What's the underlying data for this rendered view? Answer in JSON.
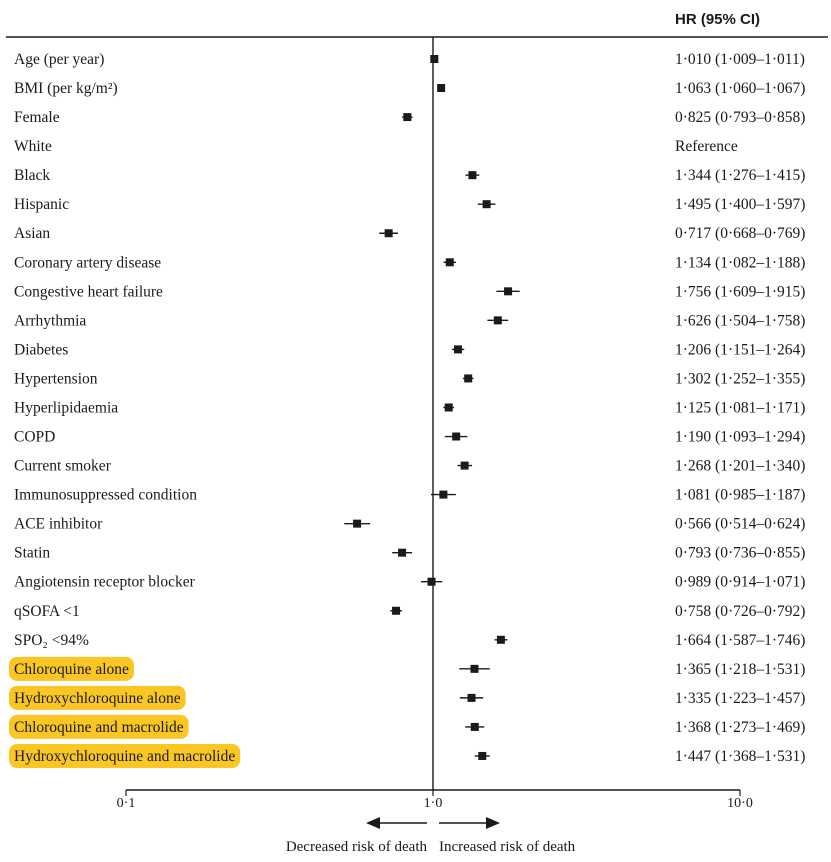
{
  "colors": {
    "highlight": "#F9C623",
    "ink": "#1a1a1a"
  },
  "chart_data": {
    "type": "forest",
    "column_header": "HR (95% CI)",
    "x_scale": "log",
    "xlim": [
      0.1,
      10.0
    ],
    "x_ticks": [
      0.1,
      1.0,
      10.0
    ],
    "x_tick_labels": [
      "0·1",
      "1·0",
      "10·0"
    ],
    "reference_line": 1.0,
    "direction_labels": {
      "left": "Decreased risk of death",
      "right": "Increased risk of death"
    },
    "rows": [
      {
        "label": "Age (per year)",
        "hr": 1.01,
        "lo": 1.009,
        "hi": 1.011,
        "text": "1·010 (1·009–1·011)",
        "highlight": false
      },
      {
        "label": "BMI (per kg/m²)",
        "hr": 1.063,
        "lo": 1.06,
        "hi": 1.067,
        "text": "1·063 (1·060–1·067)",
        "highlight": false
      },
      {
        "label": "Female",
        "hr": 0.825,
        "lo": 0.793,
        "hi": 0.858,
        "text": "0·825 (0·793–0·858)",
        "highlight": false
      },
      {
        "label": "White",
        "hr": null,
        "lo": null,
        "hi": null,
        "text": "Reference",
        "highlight": false
      },
      {
        "label": "Black",
        "hr": 1.344,
        "lo": 1.276,
        "hi": 1.415,
        "text": "1·344 (1·276–1·415)",
        "highlight": false
      },
      {
        "label": "Hispanic",
        "hr": 1.495,
        "lo": 1.4,
        "hi": 1.597,
        "text": "1·495 (1·400–1·597)",
        "highlight": false
      },
      {
        "label": "Asian",
        "hr": 0.717,
        "lo": 0.668,
        "hi": 0.769,
        "text": "0·717 (0·668–0·769)",
        "highlight": false
      },
      {
        "label": "Coronary artery disease",
        "hr": 1.134,
        "lo": 1.082,
        "hi": 1.188,
        "text": "1·134 (1·082–1·188)",
        "highlight": false
      },
      {
        "label": "Congestive heart failure",
        "hr": 1.756,
        "lo": 1.609,
        "hi": 1.915,
        "text": "1·756 (1·609–1·915)",
        "highlight": false
      },
      {
        "label": "Arrhythmia",
        "hr": 1.626,
        "lo": 1.504,
        "hi": 1.758,
        "text": "1·626 (1·504–1·758)",
        "highlight": false
      },
      {
        "label": "Diabetes",
        "hr": 1.206,
        "lo": 1.151,
        "hi": 1.264,
        "text": "1·206 (1·151–1·264)",
        "highlight": false
      },
      {
        "label": "Hypertension",
        "hr": 1.302,
        "lo": 1.252,
        "hi": 1.355,
        "text": "1·302 (1·252–1·355)",
        "highlight": false
      },
      {
        "label": "Hyperlipidaemia",
        "hr": 1.125,
        "lo": 1.081,
        "hi": 1.171,
        "text": "1·125 (1·081–1·171)",
        "highlight": false
      },
      {
        "label": "COPD",
        "hr": 1.19,
        "lo": 1.093,
        "hi": 1.294,
        "text": "1·190 (1·093–1·294)",
        "highlight": false
      },
      {
        "label": "Current smoker",
        "hr": 1.268,
        "lo": 1.201,
        "hi": 1.34,
        "text": "1·268 (1·201–1·340)",
        "highlight": false
      },
      {
        "label": "Immunosuppressed condition",
        "hr": 1.081,
        "lo": 0.985,
        "hi": 1.187,
        "text": "1·081 (0·985–1·187)",
        "highlight": false
      },
      {
        "label": "ACE inhibitor",
        "hr": 0.566,
        "lo": 0.514,
        "hi": 0.624,
        "text": "0·566 (0·514–0·624)",
        "highlight": false
      },
      {
        "label": "Statin",
        "hr": 0.793,
        "lo": 0.736,
        "hi": 0.855,
        "text": "0·793 (0·736–0·855)",
        "highlight": false
      },
      {
        "label": "Angiotensin receptor blocker",
        "hr": 0.989,
        "lo": 0.914,
        "hi": 1.071,
        "text": "0·989 (0·914–1·071)",
        "highlight": false
      },
      {
        "label": "qSOFA <1",
        "hr": 0.758,
        "lo": 0.726,
        "hi": 0.792,
        "text": "0·758 (0·726–0·792)",
        "highlight": false
      },
      {
        "label": "SPO₂ <94%",
        "hr": 1.664,
        "lo": 1.587,
        "hi": 1.746,
        "text": "1·664 (1·587–1·746)",
        "highlight": false
      },
      {
        "label": "Chloroquine alone",
        "hr": 1.365,
        "lo": 1.218,
        "hi": 1.531,
        "text": "1·365 (1·218–1·531)",
        "highlight": true
      },
      {
        "label": "Hydroxychloroquine alone",
        "hr": 1.335,
        "lo": 1.223,
        "hi": 1.457,
        "text": "1·335 (1·223–1·457)",
        "highlight": true
      },
      {
        "label": "Chloroquine and macrolide",
        "hr": 1.368,
        "lo": 1.273,
        "hi": 1.469,
        "text": "1·368 (1·273–1·469)",
        "highlight": true
      },
      {
        "label": "Hydroxychloroquine and macrolide",
        "hr": 1.447,
        "lo": 1.368,
        "hi": 1.531,
        "text": "1·447 (1·368–1·531)",
        "highlight": true
      }
    ]
  }
}
